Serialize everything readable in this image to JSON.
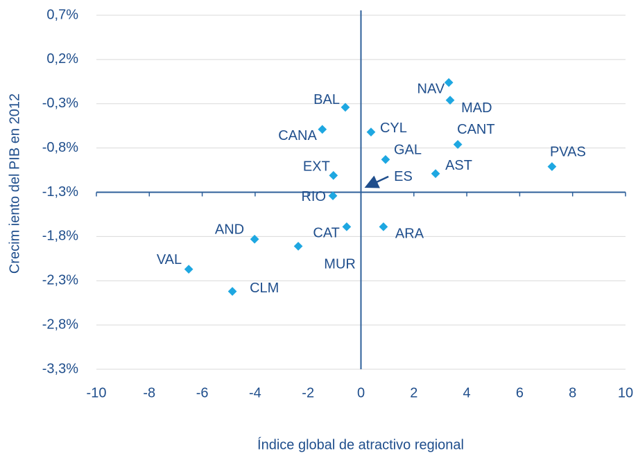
{
  "chart_data": {
    "type": "scatter",
    "x_label": "Índice global de atractivo regional",
    "y_label": "Crecim iento del PIB en 2012",
    "labels": [
      "NAV",
      "MAD",
      "BAL",
      "CYL",
      "CANA",
      "CANT",
      "PVAS",
      "GAL",
      "AST",
      "EXT",
      "ES",
      "RIO",
      "CAT",
      "ARA",
      "AND",
      "MUR",
      "VAL",
      "CLM"
    ],
    "x": [
      3.32,
      3.37,
      -0.59,
      0.38,
      -1.46,
      3.66,
      7.22,
      0.93,
      2.82,
      -1.04,
      0.2,
      -1.06,
      -0.54,
      0.85,
      -4.02,
      -2.37,
      -6.51,
      -4.86
    ],
    "values": [
      -0.06,
      -0.26,
      -0.34,
      -0.62,
      -0.59,
      -0.76,
      -1.01,
      -0.93,
      -1.09,
      -1.11,
      -1.24,
      -1.34,
      -1.69,
      -1.69,
      -1.83,
      -1.91,
      -2.17,
      -2.42
    ],
    "color": "#1ea7e1",
    "xlim": [
      -10,
      10
    ],
    "xticks": [
      -10,
      -8,
      -6,
      -4,
      -2,
      0,
      2,
      4,
      6,
      8,
      10
    ],
    "ylim": [
      -3.3,
      0.7
    ],
    "yticks": [
      {
        "value": 0.7,
        "label": "0,7%"
      },
      {
        "value": 0.2,
        "label": "0,2%"
      },
      {
        "value": -0.3,
        "label": "-0,3%"
      },
      {
        "value": -0.8,
        "label": "-0,8%"
      },
      {
        "value": -1.3,
        "label": "-1,3%"
      },
      {
        "value": -1.8,
        "label": "-1,8%"
      },
      {
        "value": -2.3,
        "label": "-2,3%"
      },
      {
        "value": -2.8,
        "label": "-2,8%"
      },
      {
        "value": -3.3,
        "label": "-3,3%"
      }
    ],
    "x_axis_at": -1.3,
    "grid": true
  }
}
